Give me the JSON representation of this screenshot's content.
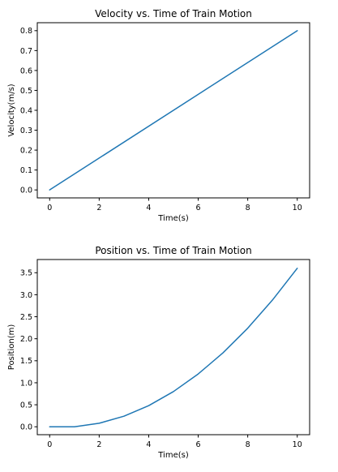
{
  "chart_data": [
    {
      "type": "line",
      "title": "Velocity vs. Time of Train Motion",
      "xlabel": "Time(s)",
      "ylabel": "Velocity(m/s)",
      "xlim": [
        -0.5,
        10.5
      ],
      "ylim": [
        -0.04,
        0.84
      ],
      "xticks": [
        0,
        2,
        4,
        6,
        8,
        10
      ],
      "yticks": [
        0.0,
        0.1,
        0.2,
        0.3,
        0.4,
        0.5,
        0.6,
        0.7,
        0.8
      ],
      "ytick_decimals": 1,
      "grid": false,
      "series": [
        {
          "color": "#1f77b4",
          "x": [
            0,
            10
          ],
          "y": [
            0.0,
            0.8
          ]
        }
      ]
    },
    {
      "type": "line",
      "title": "Position vs. Time of Train Motion",
      "xlabel": "Time(s)",
      "ylabel": "Position(m)",
      "xlim": [
        -0.5,
        10.5
      ],
      "ylim": [
        -0.18,
        3.8
      ],
      "xticks": [
        0,
        2,
        4,
        6,
        8,
        10
      ],
      "yticks": [
        0.0,
        0.5,
        1.0,
        1.5,
        2.0,
        2.5,
        3.0,
        3.5
      ],
      "ytick_decimals": 1,
      "grid": false,
      "series": [
        {
          "color": "#1f77b4",
          "x": [
            0,
            1,
            2,
            3,
            4,
            5,
            6,
            7,
            8,
            9,
            10
          ],
          "y": [
            0.0,
            0.0,
            0.08,
            0.24,
            0.48,
            0.8,
            1.2,
            1.68,
            2.24,
            2.88,
            3.6
          ]
        }
      ]
    }
  ]
}
